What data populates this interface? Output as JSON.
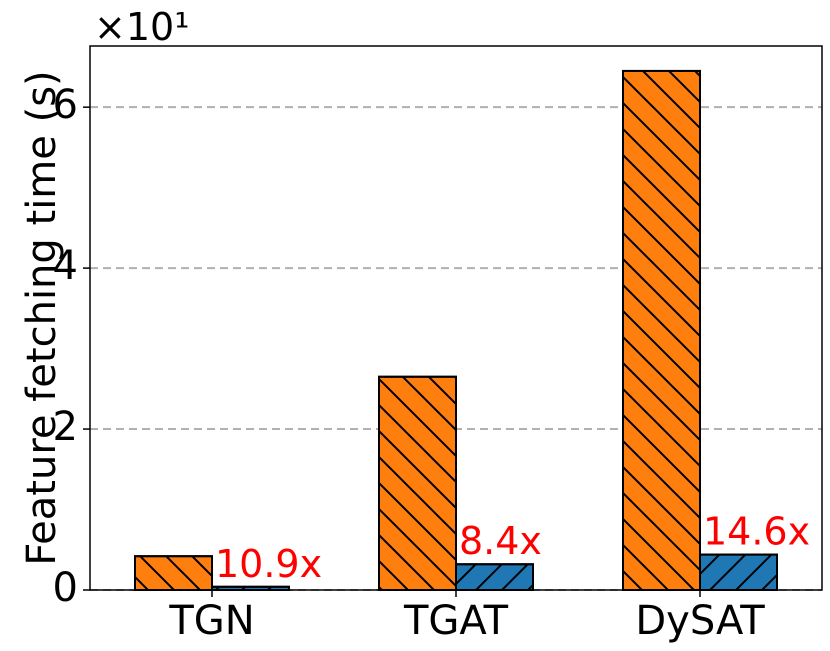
{
  "chart_data": {
    "type": "bar",
    "y_label": "Feature fetching time (s)",
    "y_offset_label": "×10¹",
    "categories": [
      "TGN",
      "TGAT",
      "DySAT"
    ],
    "series": [
      {
        "color": "#ff7f0e",
        "hatch": "back",
        "values": [
          0.42,
          2.65,
          6.45
        ]
      },
      {
        "color": "#1f77b4",
        "hatch": "forward",
        "values": [
          0.04,
          0.32,
          0.44
        ],
        "value_labels": [
          "10.9x",
          "8.4x",
          "14.6x"
        ],
        "value_label_color": "#ff0000"
      }
    ],
    "ylim": [
      0,
      6.76
    ],
    "yticks": [
      0,
      2,
      4,
      6
    ],
    "grid": true
  }
}
